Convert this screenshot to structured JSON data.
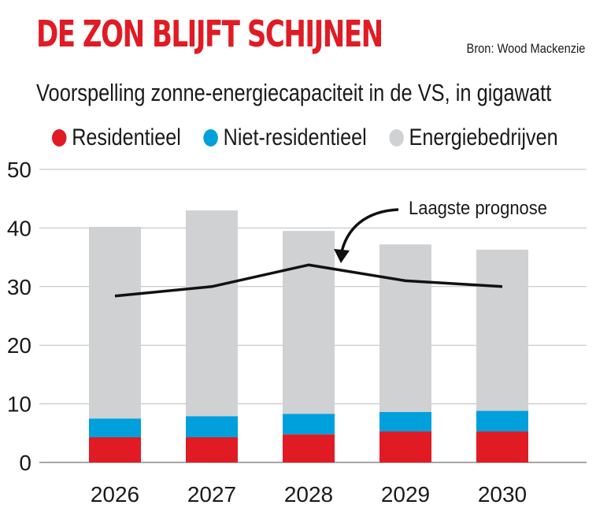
{
  "title": "DE ZON BLIJFT SCHIJNEN",
  "source": "Bron: Wood Mackenzie",
  "subtitle": "Voorspelling zonne-energiecapaciteit in de VS, in gigawatt",
  "chart_data": {
    "type": "bar",
    "stacked": true,
    "categories": [
      "2026",
      "2027",
      "2028",
      "2029",
      "2030"
    ],
    "series": [
      {
        "name": "Residentieel",
        "color": "#e01b24",
        "values": [
          4.3,
          4.3,
          4.8,
          5.3,
          5.3
        ]
      },
      {
        "name": "Niet-residentieel",
        "color": "#00a0dc",
        "values": [
          3.2,
          3.6,
          3.5,
          3.3,
          3.5
        ]
      },
      {
        "name": "Energiebedrijven",
        "color": "#d0d1d3",
        "values": [
          32.7,
          35.1,
          31.2,
          28.6,
          27.5
        ]
      }
    ],
    "line": {
      "name": "Laagste prognose",
      "color": "#111111",
      "values": [
        28.4,
        30.0,
        33.7,
        31.0,
        30.0
      ]
    },
    "annotation": "Laagste prognose",
    "yticks": [
      0,
      10,
      20,
      30,
      40,
      50
    ],
    "ylim": [
      0,
      50
    ],
    "grid": true,
    "legend": "top"
  }
}
